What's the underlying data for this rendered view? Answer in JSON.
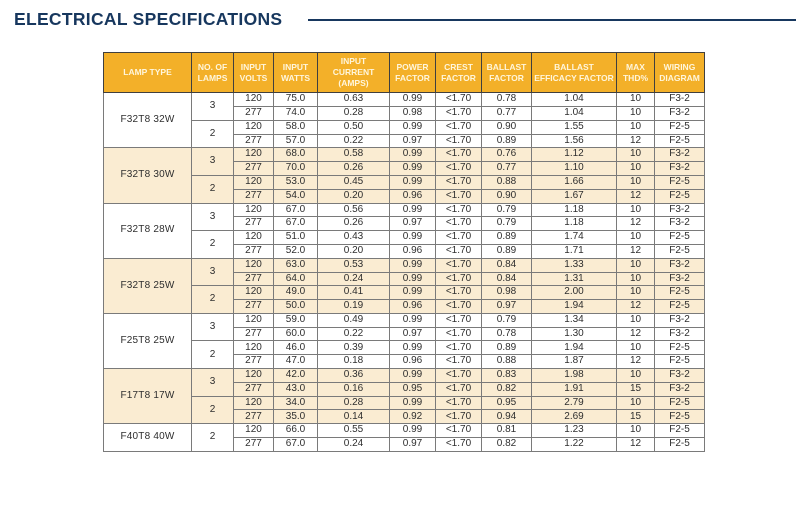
{
  "title": "ELECTRICAL SPECIFICATIONS",
  "colors": {
    "header_gold": "#F3B029",
    "header_text": "#FFF6DC",
    "shaded_row": "#FAECD2",
    "title_navy": "#17375E",
    "grid_border": "#7a7a7a"
  },
  "table": {
    "columns": [
      "LAMP TYPE",
      "NO. OF LAMPS",
      "INPUT VOLTS",
      "INPUT WATTS",
      "INPUT CURRENT (AMPS)",
      "POWER FACTOR",
      "CREST FACTOR",
      "BALLAST FACTOR",
      "BALLAST EFFICACY FACTOR",
      "MAX THD%",
      "WIRING DIAGRAM"
    ],
    "value_columns": [
      "input-volts",
      "input-watts",
      "input-current-amps",
      "power-factor",
      "crest-factor",
      "ballast-factor",
      "ballast-efficacy-factor",
      "max-thd",
      "wiring-diagram"
    ],
    "groups": [
      {
        "lamp_type": "F32T8 32W",
        "shaded": false,
        "subgroups": [
          {
            "lamps": "3",
            "rows": [
              [
                "120",
                "75.0",
                "0.63",
                "0.99",
                "<1.70",
                "0.78",
                "1.04",
                "10",
                "F3-2"
              ],
              [
                "277",
                "74.0",
                "0.28",
                "0.98",
                "<1.70",
                "0.77",
                "1.04",
                "10",
                "F3-2"
              ]
            ]
          },
          {
            "lamps": "2",
            "rows": [
              [
                "120",
                "58.0",
                "0.50",
                "0.99",
                "<1.70",
                "0.90",
                "1.55",
                "10",
                "F2-5"
              ],
              [
                "277",
                "57.0",
                "0.22",
                "0.97",
                "<1.70",
                "0.89",
                "1.56",
                "12",
                "F2-5"
              ]
            ]
          }
        ]
      },
      {
        "lamp_type": "F32T8 30W",
        "shaded": true,
        "subgroups": [
          {
            "lamps": "3",
            "rows": [
              [
                "120",
                "68.0",
                "0.58",
                "0.99",
                "<1.70",
                "0.76",
                "1.12",
                "10",
                "F3-2"
              ],
              [
                "277",
                "70.0",
                "0.26",
                "0.99",
                "<1.70",
                "0.77",
                "1.10",
                "10",
                "F3-2"
              ]
            ]
          },
          {
            "lamps": "2",
            "rows": [
              [
                "120",
                "53.0",
                "0.45",
                "0.99",
                "<1.70",
                "0.88",
                "1.66",
                "10",
                "F2-5"
              ],
              [
                "277",
                "54.0",
                "0.20",
                "0.96",
                "<1.70",
                "0.90",
                "1.67",
                "12",
                "F2-5"
              ]
            ]
          }
        ]
      },
      {
        "lamp_type": "F32T8 28W",
        "shaded": false,
        "subgroups": [
          {
            "lamps": "3",
            "rows": [
              [
                "120",
                "67.0",
                "0.56",
                "0.99",
                "<1.70",
                "0.79",
                "1.18",
                "10",
                "F3-2"
              ],
              [
                "277",
                "67.0",
                "0.26",
                "0.97",
                "<1.70",
                "0.79",
                "1.18",
                "12",
                "F3-2"
              ]
            ]
          },
          {
            "lamps": "2",
            "rows": [
              [
                "120",
                "51.0",
                "0.43",
                "0.99",
                "<1.70",
                "0.89",
                "1.74",
                "10",
                "F2-5"
              ],
              [
                "277",
                "52.0",
                "0.20",
                "0.96",
                "<1.70",
                "0.89",
                "1.71",
                "12",
                "F2-5"
              ]
            ]
          }
        ]
      },
      {
        "lamp_type": "F32T8 25W",
        "shaded": true,
        "subgroups": [
          {
            "lamps": "3",
            "rows": [
              [
                "120",
                "63.0",
                "0.53",
                "0.99",
                "<1.70",
                "0.84",
                "1.33",
                "10",
                "F3-2"
              ],
              [
                "277",
                "64.0",
                "0.24",
                "0.99",
                "<1.70",
                "0.84",
                "1.31",
                "10",
                "F3-2"
              ]
            ]
          },
          {
            "lamps": "2",
            "rows": [
              [
                "120",
                "49.0",
                "0.41",
                "0.99",
                "<1.70",
                "0.98",
                "2.00",
                "10",
                "F2-5"
              ],
              [
                "277",
                "50.0",
                "0.19",
                "0.96",
                "<1.70",
                "0.97",
                "1.94",
                "12",
                "F2-5"
              ]
            ]
          }
        ]
      },
      {
        "lamp_type": "F25T8 25W",
        "shaded": false,
        "subgroups": [
          {
            "lamps": "3",
            "rows": [
              [
                "120",
                "59.0",
                "0.49",
                "0.99",
                "<1.70",
                "0.79",
                "1.34",
                "10",
                "F3-2"
              ],
              [
                "277",
                "60.0",
                "0.22",
                "0.97",
                "<1.70",
                "0.78",
                "1.30",
                "12",
                "F3-2"
              ]
            ]
          },
          {
            "lamps": "2",
            "rows": [
              [
                "120",
                "46.0",
                "0.39",
                "0.99",
                "<1.70",
                "0.89",
                "1.94",
                "10",
                "F2-5"
              ],
              [
                "277",
                "47.0",
                "0.18",
                "0.96",
                "<1.70",
                "0.88",
                "1.87",
                "12",
                "F2-5"
              ]
            ]
          }
        ]
      },
      {
        "lamp_type": "F17T8 17W",
        "shaded": true,
        "subgroups": [
          {
            "lamps": "3",
            "rows": [
              [
                "120",
                "42.0",
                "0.36",
                "0.99",
                "<1.70",
                "0.83",
                "1.98",
                "10",
                "F3-2"
              ],
              [
                "277",
                "43.0",
                "0.16",
                "0.95",
                "<1.70",
                "0.82",
                "1.91",
                "15",
                "F3-2"
              ]
            ]
          },
          {
            "lamps": "2",
            "rows": [
              [
                "120",
                "34.0",
                "0.28",
                "0.99",
                "<1.70",
                "0.95",
                "2.79",
                "10",
                "F2-5"
              ],
              [
                "277",
                "35.0",
                "0.14",
                "0.92",
                "<1.70",
                "0.94",
                "2.69",
                "15",
                "F2-5"
              ]
            ]
          }
        ]
      },
      {
        "lamp_type": "F40T8 40W",
        "shaded": false,
        "subgroups": [
          {
            "lamps": "2",
            "rows": [
              [
                "120",
                "66.0",
                "0.55",
                "0.99",
                "<1.70",
                "0.81",
                "1.23",
                "10",
                "F2-5"
              ],
              [
                "277",
                "67.0",
                "0.24",
                "0.97",
                "<1.70",
                "0.82",
                "1.22",
                "12",
                "F2-5"
              ]
            ]
          }
        ]
      }
    ]
  }
}
